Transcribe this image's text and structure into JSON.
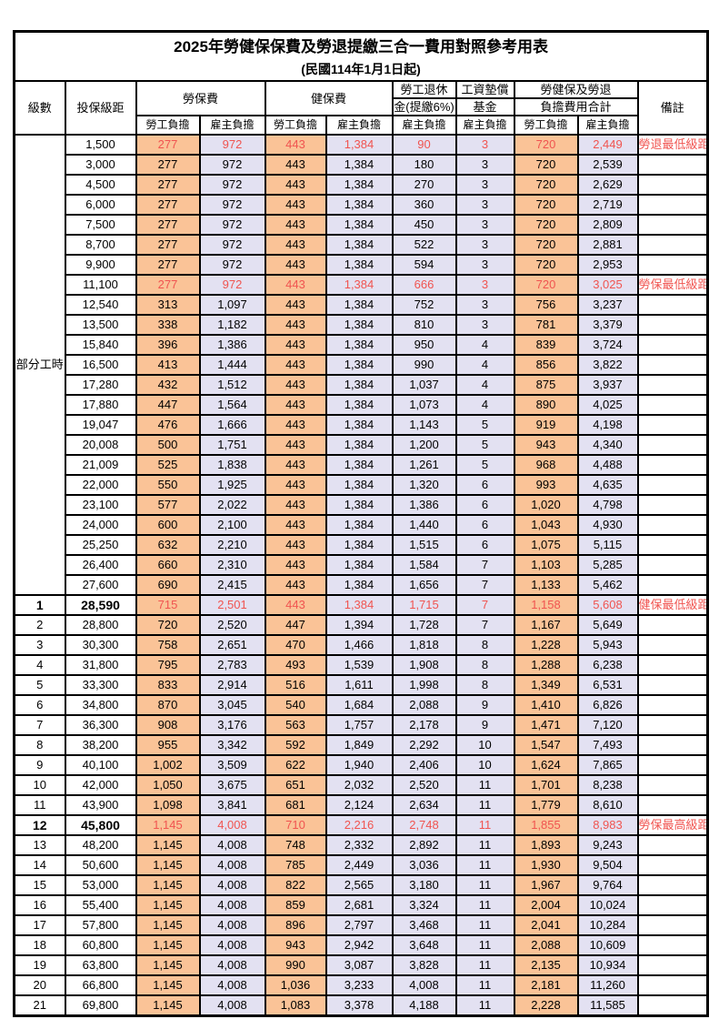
{
  "title": "2025年勞健保保費及勞退提繳三合一費用對照參考用表",
  "subtitle": "(民國114年1月1日起)",
  "colors": {
    "employee_bg": "#FAC397",
    "employer_bg": "#E3E1F2",
    "highlight": "#F05450"
  },
  "header": {
    "level": "級數",
    "bracket": "投保級距",
    "labor_group": "勞保費",
    "health_group": "健保費",
    "pension_line1": "勞工退休",
    "pension_line2": "金(提繳6%)",
    "wage_fund_line1": "工資墊償",
    "wage_fund_line2": "基金",
    "total_line1": "勞健保及勞退",
    "total_line2": "負擔費用合計",
    "employee": "勞工負擔",
    "employer": "雇主負擔",
    "remark": "備註"
  },
  "group_label": "部分工時",
  "rows": [
    {
      "lv": "",
      "br": "1,500",
      "v": [
        "277",
        "972",
        "443",
        "1,384",
        "90",
        "3",
        "720",
        "2,449"
      ],
      "rm": "勞退最低級距",
      "hl": true,
      "bd": false
    },
    {
      "lv": "",
      "br": "3,000",
      "v": [
        "277",
        "972",
        "443",
        "1,384",
        "180",
        "3",
        "720",
        "2,539"
      ],
      "rm": "",
      "hl": false,
      "bd": false
    },
    {
      "lv": "",
      "br": "4,500",
      "v": [
        "277",
        "972",
        "443",
        "1,384",
        "270",
        "3",
        "720",
        "2,629"
      ],
      "rm": "",
      "hl": false,
      "bd": false
    },
    {
      "lv": "",
      "br": "6,000",
      "v": [
        "277",
        "972",
        "443",
        "1,384",
        "360",
        "3",
        "720",
        "2,719"
      ],
      "rm": "",
      "hl": false,
      "bd": false
    },
    {
      "lv": "",
      "br": "7,500",
      "v": [
        "277",
        "972",
        "443",
        "1,384",
        "450",
        "3",
        "720",
        "2,809"
      ],
      "rm": "",
      "hl": false,
      "bd": false
    },
    {
      "lv": "",
      "br": "8,700",
      "v": [
        "277",
        "972",
        "443",
        "1,384",
        "522",
        "3",
        "720",
        "2,881"
      ],
      "rm": "",
      "hl": false,
      "bd": false
    },
    {
      "lv": "",
      "br": "9,900",
      "v": [
        "277",
        "972",
        "443",
        "1,384",
        "594",
        "3",
        "720",
        "2,953"
      ],
      "rm": "",
      "hl": false,
      "bd": false
    },
    {
      "lv": "",
      "br": "11,100",
      "v": [
        "277",
        "972",
        "443",
        "1,384",
        "666",
        "3",
        "720",
        "3,025"
      ],
      "rm": "勞保最低級距",
      "hl": true,
      "bd": false
    },
    {
      "lv": "",
      "br": "12,540",
      "v": [
        "313",
        "1,097",
        "443",
        "1,384",
        "752",
        "3",
        "756",
        "3,237"
      ],
      "rm": "",
      "hl": false,
      "bd": false
    },
    {
      "lv": "",
      "br": "13,500",
      "v": [
        "338",
        "1,182",
        "443",
        "1,384",
        "810",
        "3",
        "781",
        "3,379"
      ],
      "rm": "",
      "hl": false,
      "bd": false
    },
    {
      "lv": "",
      "br": "15,840",
      "v": [
        "396",
        "1,386",
        "443",
        "1,384",
        "950",
        "4",
        "839",
        "3,724"
      ],
      "rm": "",
      "hl": false,
      "bd": false
    },
    {
      "lv": "",
      "br": "16,500",
      "v": [
        "413",
        "1,444",
        "443",
        "1,384",
        "990",
        "4",
        "856",
        "3,822"
      ],
      "rm": "",
      "hl": false,
      "bd": false
    },
    {
      "lv": "",
      "br": "17,280",
      "v": [
        "432",
        "1,512",
        "443",
        "1,384",
        "1,037",
        "4",
        "875",
        "3,937"
      ],
      "rm": "",
      "hl": false,
      "bd": false
    },
    {
      "lv": "",
      "br": "17,880",
      "v": [
        "447",
        "1,564",
        "443",
        "1,384",
        "1,073",
        "4",
        "890",
        "4,025"
      ],
      "rm": "",
      "hl": false,
      "bd": false
    },
    {
      "lv": "",
      "br": "19,047",
      "v": [
        "476",
        "1,666",
        "443",
        "1,384",
        "1,143",
        "5",
        "919",
        "4,198"
      ],
      "rm": "",
      "hl": false,
      "bd": false
    },
    {
      "lv": "",
      "br": "20,008",
      "v": [
        "500",
        "1,751",
        "443",
        "1,384",
        "1,200",
        "5",
        "943",
        "4,340"
      ],
      "rm": "",
      "hl": false,
      "bd": false
    },
    {
      "lv": "",
      "br": "21,009",
      "v": [
        "525",
        "1,838",
        "443",
        "1,384",
        "1,261",
        "5",
        "968",
        "4,488"
      ],
      "rm": "",
      "hl": false,
      "bd": false
    },
    {
      "lv": "",
      "br": "22,000",
      "v": [
        "550",
        "1,925",
        "443",
        "1,384",
        "1,320",
        "6",
        "993",
        "4,635"
      ],
      "rm": "",
      "hl": false,
      "bd": false
    },
    {
      "lv": "",
      "br": "23,100",
      "v": [
        "577",
        "2,022",
        "443",
        "1,384",
        "1,386",
        "6",
        "1,020",
        "4,798"
      ],
      "rm": "",
      "hl": false,
      "bd": false
    },
    {
      "lv": "",
      "br": "24,000",
      "v": [
        "600",
        "2,100",
        "443",
        "1,384",
        "1,440",
        "6",
        "1,043",
        "4,930"
      ],
      "rm": "",
      "hl": false,
      "bd": false
    },
    {
      "lv": "",
      "br": "25,250",
      "v": [
        "632",
        "2,210",
        "443",
        "1,384",
        "1,515",
        "6",
        "1,075",
        "5,115"
      ],
      "rm": "",
      "hl": false,
      "bd": false
    },
    {
      "lv": "",
      "br": "26,400",
      "v": [
        "660",
        "2,310",
        "443",
        "1,384",
        "1,584",
        "7",
        "1,103",
        "5,285"
      ],
      "rm": "",
      "hl": false,
      "bd": false
    },
    {
      "lv": "",
      "br": "27,600",
      "v": [
        "690",
        "2,415",
        "443",
        "1,384",
        "1,656",
        "7",
        "1,133",
        "5,462"
      ],
      "rm": "",
      "hl": false,
      "bd": false
    },
    {
      "lv": "1",
      "br": "28,590",
      "v": [
        "715",
        "2,501",
        "443",
        "1,384",
        "1,715",
        "7",
        "1,158",
        "5,608"
      ],
      "rm": "健保最低級距",
      "hl": true,
      "bd": true
    },
    {
      "lv": "2",
      "br": "28,800",
      "v": [
        "720",
        "2,520",
        "447",
        "1,394",
        "1,728",
        "7",
        "1,167",
        "5,649"
      ],
      "rm": "",
      "hl": false,
      "bd": false
    },
    {
      "lv": "3",
      "br": "30,300",
      "v": [
        "758",
        "2,651",
        "470",
        "1,466",
        "1,818",
        "8",
        "1,228",
        "5,943"
      ],
      "rm": "",
      "hl": false,
      "bd": false
    },
    {
      "lv": "4",
      "br": "31,800",
      "v": [
        "795",
        "2,783",
        "493",
        "1,539",
        "1,908",
        "8",
        "1,288",
        "6,238"
      ],
      "rm": "",
      "hl": false,
      "bd": false
    },
    {
      "lv": "5",
      "br": "33,300",
      "v": [
        "833",
        "2,914",
        "516",
        "1,611",
        "1,998",
        "8",
        "1,349",
        "6,531"
      ],
      "rm": "",
      "hl": false,
      "bd": false
    },
    {
      "lv": "6",
      "br": "34,800",
      "v": [
        "870",
        "3,045",
        "540",
        "1,684",
        "2,088",
        "9",
        "1,410",
        "6,826"
      ],
      "rm": "",
      "hl": false,
      "bd": false
    },
    {
      "lv": "7",
      "br": "36,300",
      "v": [
        "908",
        "3,176",
        "563",
        "1,757",
        "2,178",
        "9",
        "1,471",
        "7,120"
      ],
      "rm": "",
      "hl": false,
      "bd": false
    },
    {
      "lv": "8",
      "br": "38,200",
      "v": [
        "955",
        "3,342",
        "592",
        "1,849",
        "2,292",
        "10",
        "1,547",
        "7,493"
      ],
      "rm": "",
      "hl": false,
      "bd": false
    },
    {
      "lv": "9",
      "br": "40,100",
      "v": [
        "1,002",
        "3,509",
        "622",
        "1,940",
        "2,406",
        "10",
        "1,624",
        "7,865"
      ],
      "rm": "",
      "hl": false,
      "bd": false
    },
    {
      "lv": "10",
      "br": "42,000",
      "v": [
        "1,050",
        "3,675",
        "651",
        "2,032",
        "2,520",
        "11",
        "1,701",
        "8,238"
      ],
      "rm": "",
      "hl": false,
      "bd": false
    },
    {
      "lv": "11",
      "br": "43,900",
      "v": [
        "1,098",
        "3,841",
        "681",
        "2,124",
        "2,634",
        "11",
        "1,779",
        "8,610"
      ],
      "rm": "",
      "hl": false,
      "bd": false
    },
    {
      "lv": "12",
      "br": "45,800",
      "v": [
        "1,145",
        "4,008",
        "710",
        "2,216",
        "2,748",
        "11",
        "1,855",
        "8,983"
      ],
      "rm": "勞保最高級距",
      "hl": true,
      "bd": true
    },
    {
      "lv": "13",
      "br": "48,200",
      "v": [
        "1,145",
        "4,008",
        "748",
        "2,332",
        "2,892",
        "11",
        "1,893",
        "9,243"
      ],
      "rm": "",
      "hl": false,
      "bd": false
    },
    {
      "lv": "14",
      "br": "50,600",
      "v": [
        "1,145",
        "4,008",
        "785",
        "2,449",
        "3,036",
        "11",
        "1,930",
        "9,504"
      ],
      "rm": "",
      "hl": false,
      "bd": false
    },
    {
      "lv": "15",
      "br": "53,000",
      "v": [
        "1,145",
        "4,008",
        "822",
        "2,565",
        "3,180",
        "11",
        "1,967",
        "9,764"
      ],
      "rm": "",
      "hl": false,
      "bd": false
    },
    {
      "lv": "16",
      "br": "55,400",
      "v": [
        "1,145",
        "4,008",
        "859",
        "2,681",
        "3,324",
        "11",
        "2,004",
        "10,024"
      ],
      "rm": "",
      "hl": false,
      "bd": false
    },
    {
      "lv": "17",
      "br": "57,800",
      "v": [
        "1,145",
        "4,008",
        "896",
        "2,797",
        "3,468",
        "11",
        "2,041",
        "10,284"
      ],
      "rm": "",
      "hl": false,
      "bd": false
    },
    {
      "lv": "18",
      "br": "60,800",
      "v": [
        "1,145",
        "4,008",
        "943",
        "2,942",
        "3,648",
        "11",
        "2,088",
        "10,609"
      ],
      "rm": "",
      "hl": false,
      "bd": false
    },
    {
      "lv": "19",
      "br": "63,800",
      "v": [
        "1,145",
        "4,008",
        "990",
        "3,087",
        "3,828",
        "11",
        "2,135",
        "10,934"
      ],
      "rm": "",
      "hl": false,
      "bd": false
    },
    {
      "lv": "20",
      "br": "66,800",
      "v": [
        "1,145",
        "4,008",
        "1,036",
        "3,233",
        "4,008",
        "11",
        "2,181",
        "11,260"
      ],
      "rm": "",
      "hl": false,
      "bd": false
    },
    {
      "lv": "21",
      "br": "69,800",
      "v": [
        "1,145",
        "4,008",
        "1,083",
        "3,378",
        "4,188",
        "11",
        "2,228",
        "11,585"
      ],
      "rm": "",
      "hl": false,
      "bd": false
    }
  ]
}
